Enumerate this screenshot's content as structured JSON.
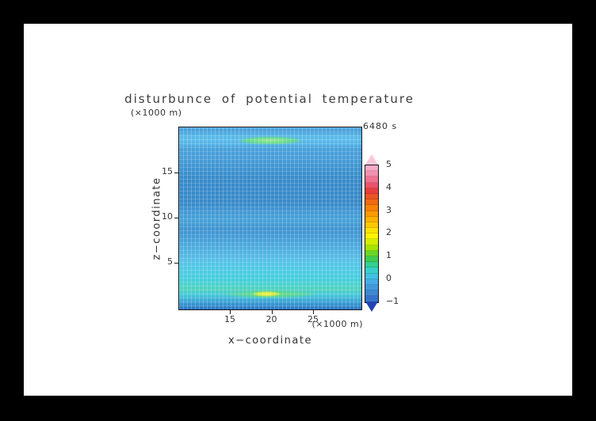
{
  "title": "disturbunce of potential temperature",
  "timestamp_label": "6480 s",
  "axes": {
    "x_label": "x−coordinate",
    "x_unit_label": "(×1000 m)",
    "z_label": "z−coordinate",
    "z_unit_label": "(×1000 m)",
    "x_ticks": [
      15,
      20,
      25
    ],
    "z_ticks": [
      5,
      10,
      15
    ]
  },
  "colorbar": {
    "tick_labels": [
      "5",
      "4",
      "3",
      "2",
      "1",
      "0",
      "−1"
    ],
    "over_color": "#f8c8da",
    "under_color": "#2244b2",
    "segments_top_to_bottom": [
      "#f6a9c9",
      "#f390ae",
      "#ef7190",
      "#eb5468",
      "#e73e3e",
      "#ec5426",
      "#f16a14",
      "#f68208",
      "#fb9a00",
      "#fcb200",
      "#fdca00",
      "#fee200",
      "#fdf500",
      "#d4ee00",
      "#a4e400",
      "#68d628",
      "#3fcc52",
      "#34cf92",
      "#38cfca",
      "#40c0e4",
      "#47abe4",
      "#4298da",
      "#3d88d0",
      "#3574c8"
    ]
  },
  "chart_data": {
    "type": "heatmap",
    "title": "disturbunce of potential temperature",
    "xlabel": "x−coordinate (×1000 m)",
    "ylabel": "z−coordinate (×1000 m)",
    "time_label": "6480 s",
    "x_ticks": [
      15,
      20,
      25
    ],
    "z_ticks": [
      5,
      10,
      15
    ],
    "x_range_est": [
      9,
      31
    ],
    "z_range_est": [
      0,
      20
    ],
    "colorbar_levels": [
      -1,
      0,
      1,
      2,
      3,
      4,
      5
    ],
    "contour_interval_est": 0.25,
    "colorbar_orientation": "vertical-right",
    "palette": "rainbow (dark blue → blue → cyan → green → yellow → orange → red → pink), with under-arrow dark blue below −1 and over-arrow light pink above 5",
    "grid": "fine rectangular mesh overlay on field",
    "field_description": [
      {
        "feature": "positive anomaly ellipse (green)",
        "x": [
          15,
          25
        ],
        "z": [
          18.5,
          19.5
        ],
        "peak_value_est": 1.5
      },
      {
        "feature": "positive anomaly streak (green with yellow core)",
        "x": [
          13,
          27
        ],
        "z": [
          1,
          2
        ],
        "peak_value_est": 2,
        "core_x": [
          18,
          21
        ]
      },
      {
        "feature": "broad slightly-negative darker blue band",
        "z": [
          9.5,
          13.5
        ],
        "value_est": -0.5
      },
      {
        "feature": "cyan band above bottom streak",
        "z": [
          2,
          4.5
        ],
        "value_est": 0.5
      },
      {
        "feature": "background alternating horizontal blue bands",
        "value_est_range": [
          -0.25,
          0.25
        ]
      },
      {
        "feature": "thin darker blue layer at bottom edge",
        "z": [
          0,
          0.5
        ],
        "value_est": -0.75
      }
    ]
  }
}
